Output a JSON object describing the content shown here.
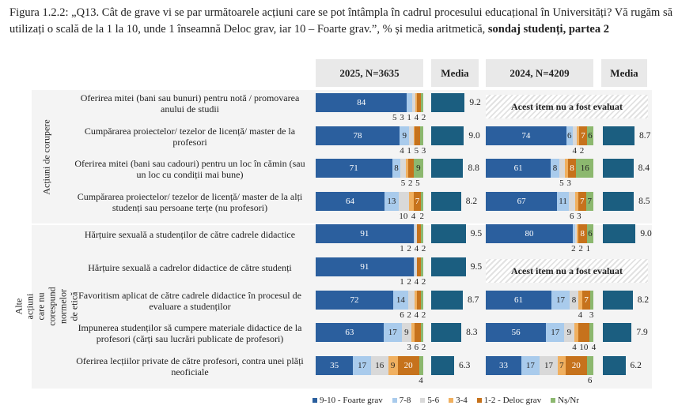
{
  "title": {
    "main": "Figura 1.2.2: „Q13. Cât de grave vi se par următoarele acțiuni care se pot întâmpla în cadrul procesului educațional în Universități? Vă rugăm să utilizați o scală de la 1 la 10, unde 1 înseamnă Deloc grav, iar 10 – Foarte grav.”, % și media aritmetică, ",
    "bold": "sondaj studenți, partea 2"
  },
  "chart_data": {
    "type": "bar",
    "headers": [
      "2025, N=3635",
      "Media",
      "2024, N=4209",
      "Media"
    ],
    "legend": [
      "9-10 - Foarte grav",
      "7-8",
      "5-6",
      "3-4",
      "1-2 - Deloc grav",
      "Nș/Nr"
    ],
    "colors": [
      "#2b5f9e",
      "#a9cbec",
      "#d9d9d9",
      "#f0b060",
      "#c6721c",
      "#8cb86f"
    ],
    "mean_color": "#1b5e80",
    "not_evaluated": "Acest item nu a fost evaluat",
    "groups": [
      {
        "label": "Acțiuni de corupere",
        "rows": [
          0,
          1,
          2,
          3
        ]
      },
      {
        "label": "Alte acțiuni care nu corespund normelor de etică",
        "rows": [
          4,
          5,
          6,
          7,
          8
        ]
      }
    ],
    "categories": [
      "Oferirea mitei (bani sau bunuri) pentru notă / promovarea anului de studii",
      "Cumpărarea proiectelor/ tezelor de licență/ master de la profesori",
      "Oferirea mitei (bani sau cadouri) pentru un loc în cămin (sau un loc cu condiții mai bune)",
      "Cumpărarea proiectelor/ tezelor de licență/ master de la alți studenți sau persoane terțe (nu profesori)",
      "Hărțuire sexuală a studenților de către cadrele didactice",
      "Hărțuire sexuală a cadrelor didactice de către studenți",
      "Favoritism aplicat de către cadrele didactice în procesul de evaluare a studenților",
      "Impunerea studenților să cumpere materiale didactice de la profesori (cărți sau lucrări publicate de profesori)",
      "Oferirea lecțiilor private de către profesori, contra unei plăți neoficiale"
    ],
    "series_2025": [
      [
        84,
        5,
        3,
        1,
        4,
        2
      ],
      [
        78,
        9,
        4,
        1,
        5,
        3
      ],
      [
        71,
        8,
        5,
        2,
        5,
        9
      ],
      [
        64,
        13,
        10,
        4,
        7,
        2
      ],
      [
        91,
        1,
        2,
        0,
        4,
        2
      ],
      [
        91,
        1,
        2,
        0,
        4,
        2
      ],
      [
        72,
        14,
        6,
        2,
        4,
        2
      ],
      [
        63,
        17,
        9,
        3,
        6,
        2
      ],
      [
        35,
        17,
        16,
        9,
        20,
        4
      ]
    ],
    "mean_2025": [
      9.2,
      9.0,
      8.8,
      8.2,
      9.5,
      9.5,
      8.7,
      8.3,
      6.3
    ],
    "series_2024": [
      null,
      [
        74,
        6,
        4,
        2,
        7,
        6
      ],
      [
        61,
        8,
        5,
        3,
        8,
        16
      ],
      [
        67,
        11,
        6,
        3,
        7,
        7
      ],
      [
        80,
        2,
        2,
        1,
        8,
        6
      ],
      null,
      [
        61,
        17,
        8,
        4,
        7,
        3
      ],
      [
        56,
        17,
        9,
        4,
        10,
        4
      ],
      [
        33,
        17,
        17,
        7,
        20,
        6
      ]
    ],
    "mean_2024": [
      null,
      8.7,
      8.4,
      8.5,
      9.0,
      null,
      8.2,
      7.9,
      6.2
    ],
    "xlim": [
      0,
      100
    ],
    "mean_lim": [
      0,
      10
    ]
  }
}
